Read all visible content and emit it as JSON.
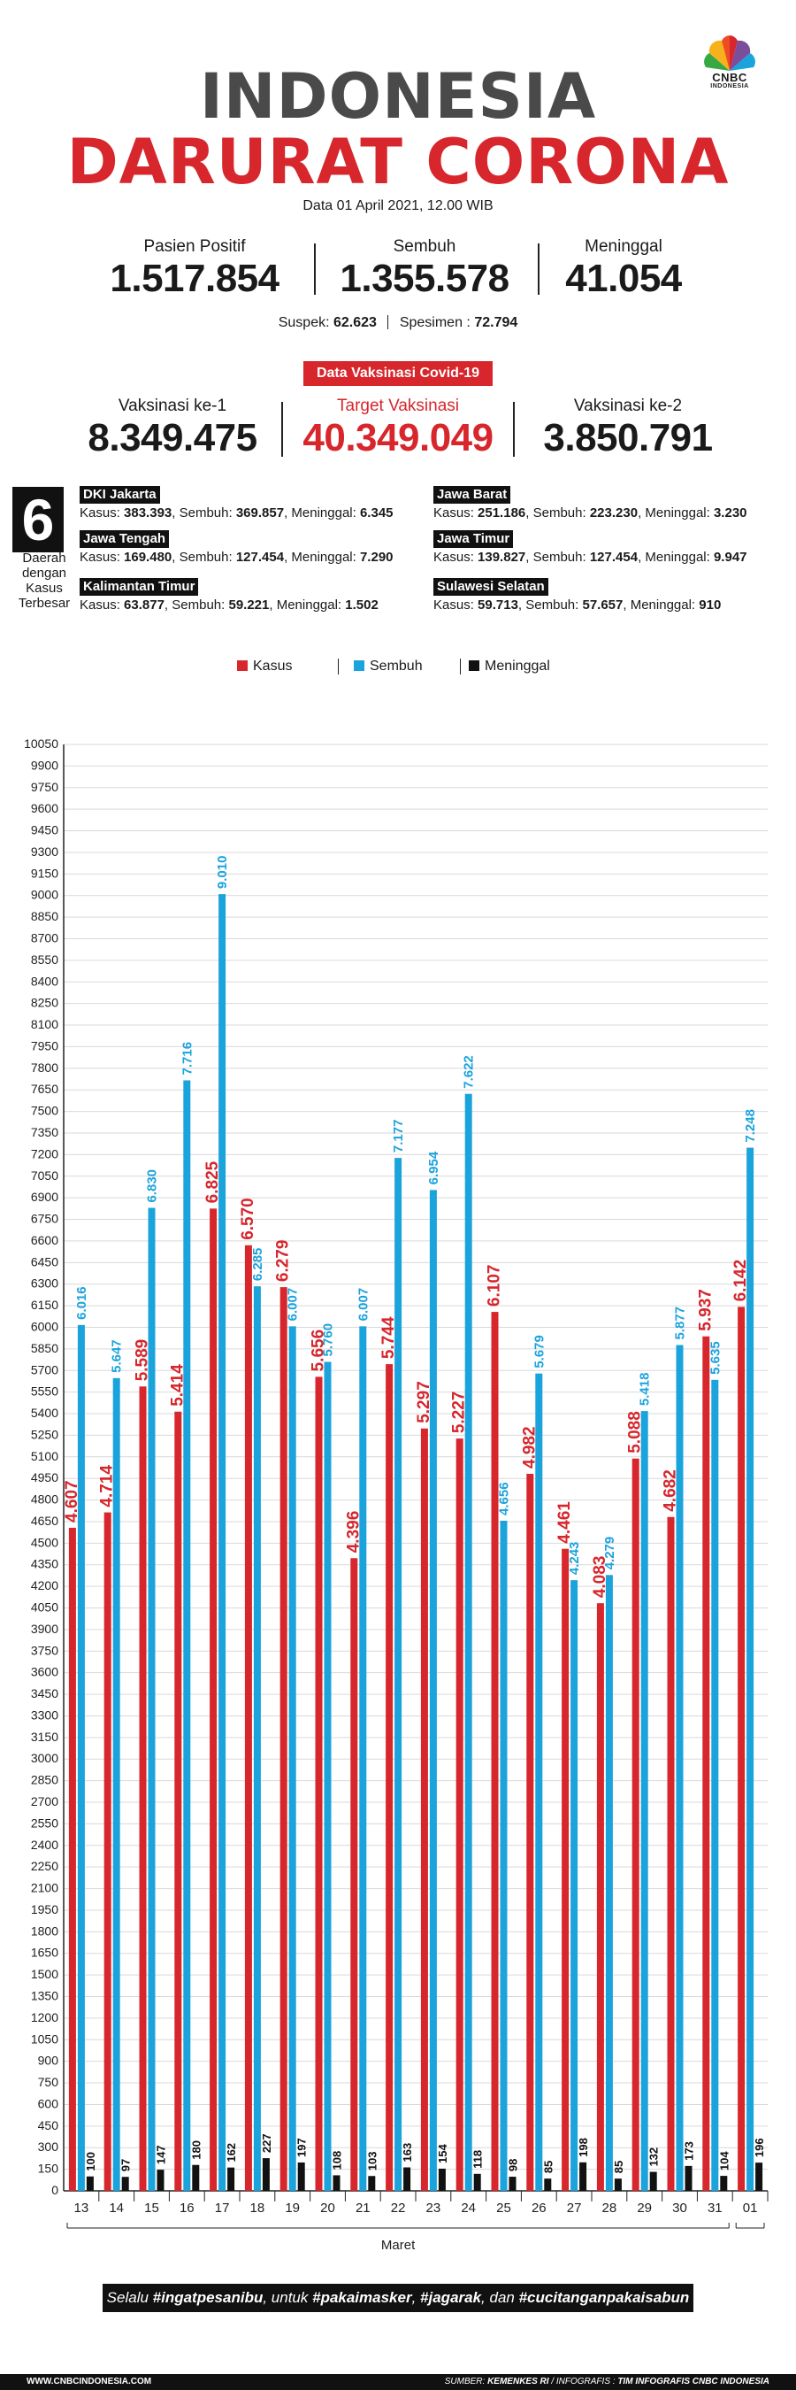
{
  "header": {
    "brand": "CNBC",
    "brand_sub": "INDONESIA",
    "title_line1": "INDONESIA",
    "title_line2": "DARURAT CORONA",
    "date_line": "Data 01 April 2021, 12.00 WIB"
  },
  "stats": {
    "positive_label": "Pasien Positif",
    "positive_value": "1.517.854",
    "recovered_label": "Sembuh",
    "recovered_value": "1.355.578",
    "deaths_label": "Meninggal",
    "deaths_value": "41.054",
    "suspect_label": "Suspek:",
    "suspect_value": "62.623",
    "specimen_label": "Spesimen :",
    "specimen_value": "72.794"
  },
  "vaccine": {
    "badge": "Data Vaksinasi Covid-19",
    "dose1_label": "Vaksinasi ke-1",
    "dose1_value": "8.349.475",
    "target_label": "Target Vaksinasi",
    "target_value": "40.349.049",
    "dose2_label": "Vaksinasi ke-2",
    "dose2_value": "3.850.791"
  },
  "regions": {
    "count": "6",
    "caption": [
      "Daerah",
      "dengan",
      "Kasus",
      "Terbesar"
    ],
    "kasus_label": "Kasus:",
    "sembuh_label": "Sembuh:",
    "meninggal_label": "Meninggal:",
    "items": [
      {
        "name": "DKI Jakarta",
        "kasus": "383.393",
        "sembuh": "369.857",
        "meninggal": "6.345"
      },
      {
        "name": "Jawa Barat",
        "kasus": "251.186",
        "sembuh": "223.230",
        "meninggal": "3.230"
      },
      {
        "name": "Jawa Tengah",
        "kasus": "169.480",
        "sembuh": "127.454",
        "meninggal": "7.290"
      },
      {
        "name": "Jawa Timur",
        "kasus": "139.827",
        "sembuh": "127.454",
        "meninggal": "9.947"
      },
      {
        "name": "Kalimantan Timur",
        "kasus": "63.877",
        "sembuh": "59.221",
        "meninggal": "1.502"
      },
      {
        "name": "Sulawesi Selatan",
        "kasus": "59.713",
        "sembuh": "57.657",
        "meninggal": "910"
      }
    ]
  },
  "colors": {
    "kasus": "#d7262c",
    "sembuh": "#1ba3dc",
    "meninggal": "#111111",
    "title_gray": "#4a4a4a"
  },
  "chart_data": {
    "type": "bar",
    "legend_placement": "top",
    "categories": [
      "13",
      "14",
      "15",
      "16",
      "17",
      "18",
      "19",
      "20",
      "21",
      "22",
      "23",
      "24",
      "25",
      "26",
      "27",
      "28",
      "29",
      "30",
      "31",
      "01"
    ],
    "category_labels": [
      "13",
      "14",
      "15",
      "16",
      "17",
      "18",
      "19",
      "20",
      "21",
      "22",
      "23",
      "24",
      "25",
      "26",
      "27",
      "28",
      "29",
      "30",
      "31",
      "01"
    ],
    "series": [
      {
        "name": "Kasus",
        "values": [
          4607,
          4714,
          5589,
          5414,
          6825,
          6570,
          6279,
          5656,
          4396,
          5744,
          5297,
          5227,
          6107,
          4982,
          4461,
          4083,
          5088,
          4682,
          5937,
          6142
        ],
        "labels": [
          "4.607",
          "4.714",
          "5.589",
          "5.414",
          "6.825",
          "6.570",
          "6.279",
          "5.656",
          "4.396",
          "5.744",
          "5.297",
          "5.227",
          "6.107",
          "4.982",
          "4.461",
          "4.083",
          "5.088",
          "4.682",
          "5.937",
          "6.142"
        ]
      },
      {
        "name": "Sembuh",
        "values": [
          6016,
          5647,
          6830,
          7716,
          9010,
          6285,
          6007,
          5760,
          6007,
          7177,
          6954,
          7622,
          4656,
          5679,
          4243,
          4279,
          5418,
          5877,
          5635,
          7248
        ],
        "labels": [
          "6.016",
          "5.647",
          "6.830",
          "7.716",
          "9.010",
          "6.285",
          "6.007",
          "5.760",
          "6.007",
          "7.177",
          "6.954",
          "7.622",
          "4.656",
          "5.679",
          "4.243",
          "4.279",
          "5.418",
          "5.877",
          "5.635",
          "7.248"
        ]
      },
      {
        "name": "Meninggal",
        "values": [
          100,
          97,
          147,
          180,
          162,
          227,
          197,
          108,
          103,
          163,
          154,
          118,
          98,
          85,
          198,
          85,
          132,
          173,
          104,
          196
        ],
        "labels": [
          "100",
          "97",
          "147",
          "180",
          "162",
          "227",
          "197",
          "108",
          "103",
          "163",
          "154",
          "118",
          "98",
          "85",
          "198",
          "85",
          "132",
          "173",
          "104",
          "196"
        ]
      }
    ],
    "ylim": [
      0,
      10050
    ],
    "yticks": [
      "0",
      "150",
      "300",
      "450",
      "600",
      "750",
      "900",
      "1050",
      "1200",
      "1350",
      "1500",
      "1650",
      "1800",
      "1950",
      "2100",
      "2250",
      "2400",
      "2550",
      "2700",
      "2850",
      "3000",
      "3150",
      "3300",
      "3450",
      "3600",
      "3750",
      "3900",
      "4050",
      "4200",
      "4350",
      "4500",
      "4650",
      "4800",
      "4950",
      "5100",
      "5250",
      "5400",
      "5550",
      "5700",
      "5850",
      "6000",
      "6150",
      "6300",
      "6450",
      "6600",
      "6750",
      "6900",
      "7050",
      "7200",
      "7350",
      "7500",
      "7650",
      "7800",
      "7950",
      "8100",
      "8250",
      "8400",
      "8550",
      "8700",
      "8850",
      "9000",
      "9150",
      "9300",
      "9450",
      "9600",
      "9750",
      "9900",
      "10050"
    ],
    "xlabel": "Maret",
    "grid": true
  },
  "footer": {
    "banner_parts": [
      "Selalu ",
      "#ingatpesanibu",
      ", untuk ",
      "#pakaimasker",
      ", ",
      "#jagarak",
      ", dan ",
      "#cucitanganpakaisabun"
    ],
    "site": "WWW.CNBCINDONESIA.COM",
    "source_label": "SUMBER:",
    "source_value": "KEMENKES RI",
    "infographic_label": "/ INFOGRAFIS :",
    "infographic_value": "TIM INFOGRAFIS CNBC INDONESIA"
  }
}
